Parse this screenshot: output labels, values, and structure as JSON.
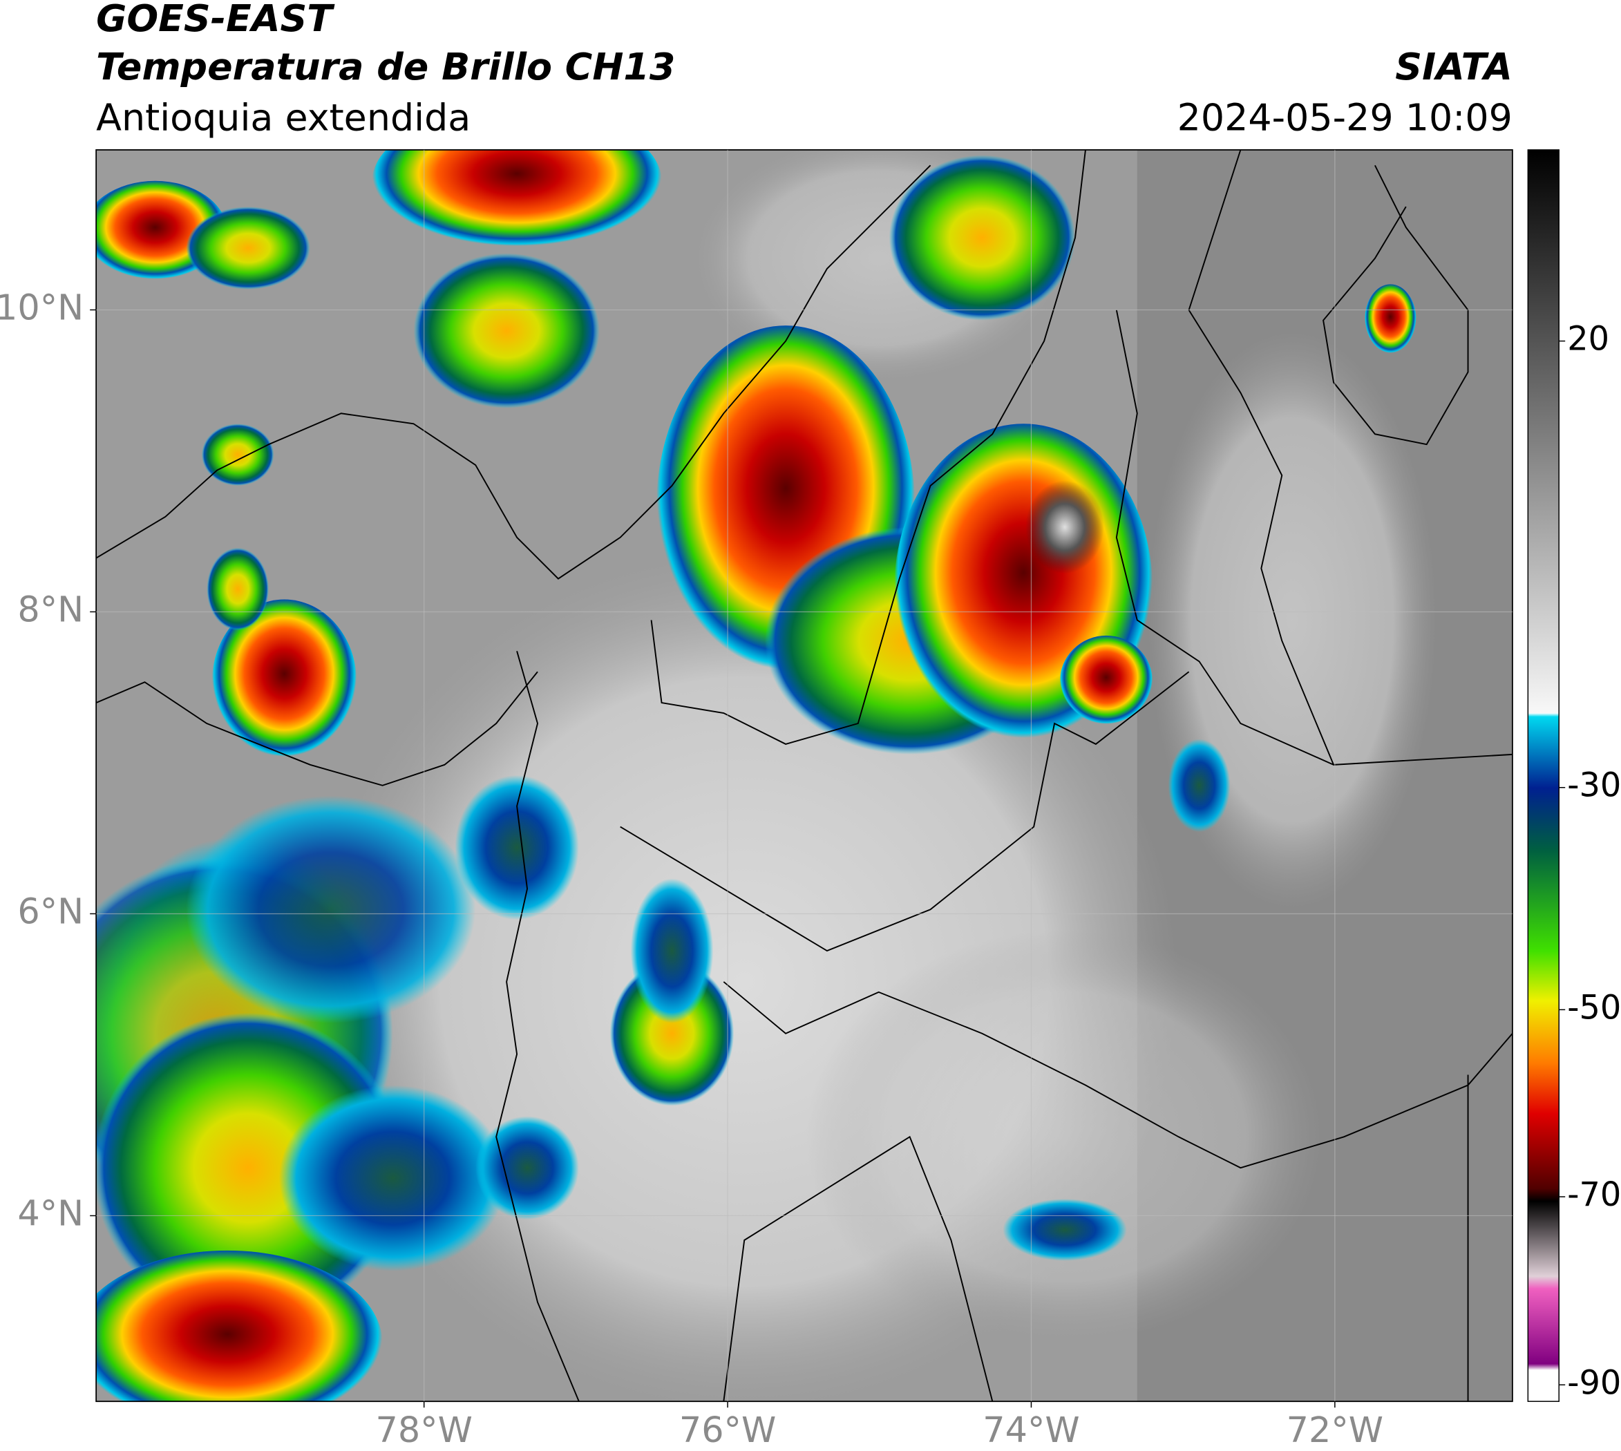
{
  "header": {
    "title": "GOES-EAST",
    "subtitle": "Temperatura de Brillo CH13",
    "region": "Antioquia extendida",
    "source": "SIATA",
    "datetime": "2024-05-29 10:09"
  },
  "map": {
    "lat_range": [
      2.77,
      11.06
    ],
    "lon_range": [
      -80.16,
      -70.83
    ],
    "lat_ticks": [
      {
        "value": 10,
        "label": "10°N"
      },
      {
        "value": 8,
        "label": "8°N"
      },
      {
        "value": 6,
        "label": "6°N"
      },
      {
        "value": 4,
        "label": "4°N"
      }
    ],
    "lon_ticks": [
      {
        "value": -78,
        "label": "78°W"
      },
      {
        "value": -76,
        "label": "76°W"
      },
      {
        "value": -74,
        "label": "74°W"
      },
      {
        "value": -72,
        "label": "72°W"
      }
    ]
  },
  "colorbar": {
    "ticks": [
      20,
      -30,
      -50,
      -70,
      -90
    ]
  }
}
